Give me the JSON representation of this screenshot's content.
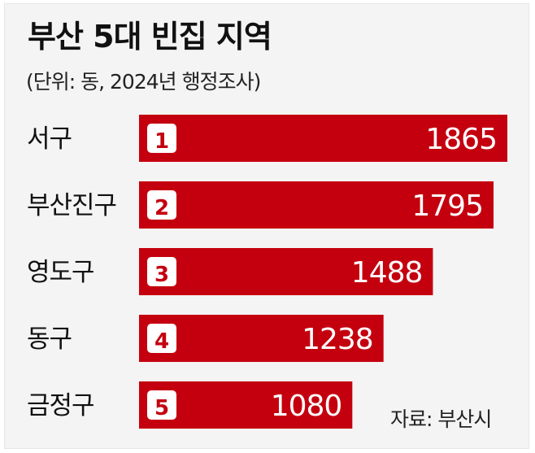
{
  "title": "부산 5대 빈집 지역",
  "subtitle": "(단위: 동, 2024년 행정조사)",
  "source": "자료: 부산시",
  "colors": {
    "bar": "#c4000f",
    "rank_box": "#ffffff",
    "rank_text": "#c4000f",
    "value_text": "#ffffff",
    "label_text": "#111111",
    "background": "#f4f4f4"
  },
  "chart_data": {
    "type": "bar",
    "orientation": "horizontal",
    "title": "부산 5대 빈집 지역",
    "subtitle": "(단위: 동, 2024년 행정조사)",
    "categories": [
      "서구",
      "부산진구",
      "영도구",
      "동구",
      "금정구"
    ],
    "ranks": [
      "1",
      "2",
      "3",
      "4",
      "5"
    ],
    "values": [
      1865,
      1795,
      1488,
      1238,
      1080
    ],
    "value_labels": [
      "1865",
      "1795",
      "1488",
      "1238",
      "1080"
    ],
    "xlim": [
      0,
      1865
    ],
    "grid": false,
    "legend": false
  }
}
